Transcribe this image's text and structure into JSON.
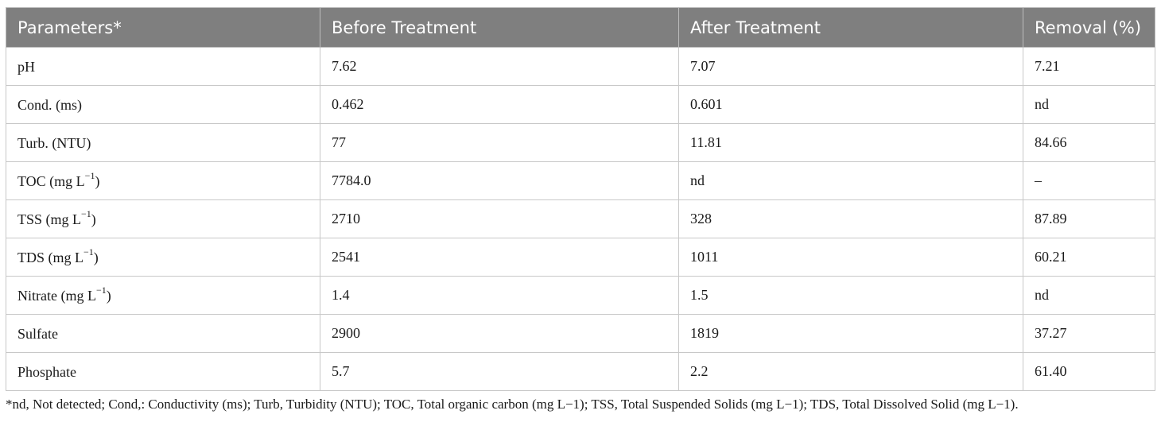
{
  "table": {
    "headers": [
      "Parameters*",
      "Before Treatment",
      "After Treatment",
      "Removal (%)"
    ],
    "rows": [
      {
        "param": "pH",
        "unit_sup": "",
        "param_suffix": "",
        "before": "7.62",
        "after": "7.07",
        "removal": "7.21"
      },
      {
        "param": "Cond. (ms)",
        "unit_sup": "",
        "param_suffix": "",
        "before": "0.462",
        "after": "0.601",
        "removal": "nd"
      },
      {
        "param": "Turb. (NTU)",
        "unit_sup": "",
        "param_suffix": "",
        "before": "77",
        "after": "11.81",
        "removal": "84.66"
      },
      {
        "param": "TOC (mg L",
        "unit_sup": "−1",
        "param_suffix": ")",
        "before": "7784.0",
        "after": "nd",
        "removal": "–"
      },
      {
        "param": "TSS (mg L",
        "unit_sup": "−1",
        "param_suffix": ")",
        "before": "2710",
        "after": "328",
        "removal": "87.89"
      },
      {
        "param": "TDS (mg L",
        "unit_sup": "−1",
        "param_suffix": ")",
        "before": "2541",
        "after": "1011",
        "removal": "60.21"
      },
      {
        "param": "Nitrate (mg L",
        "unit_sup": "−1",
        "param_suffix": ")",
        "before": "1.4",
        "after": "1.5",
        "removal": "nd"
      },
      {
        "param": "Sulfate",
        "unit_sup": "",
        "param_suffix": "",
        "before": "2900",
        "after": "1819",
        "removal": "37.27"
      },
      {
        "param": "Phosphate",
        "unit_sup": "",
        "param_suffix": "",
        "before": "5.7",
        "after": "2.2",
        "removal": "61.40"
      }
    ]
  },
  "footnote": "*nd, Not detected; Cond,: Conductivity (ms); Turb, Turbidity (NTU); TOC, Total organic carbon (mg L−1); TSS, Total Suspended Solids (mg L−1); TDS, Total Dissolved Solid (mg L−1)."
}
